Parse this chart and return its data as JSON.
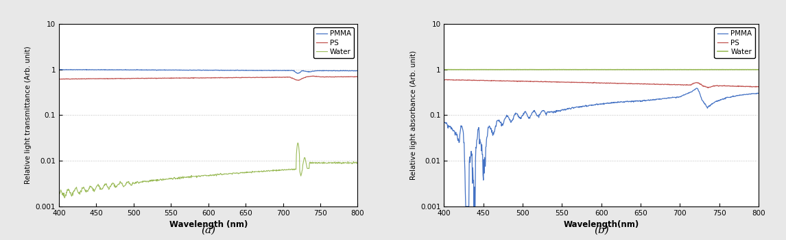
{
  "xlim": [
    400,
    800
  ],
  "ylim_log": [
    0.001,
    10
  ],
  "yticks": [
    0.001,
    0.01,
    0.1,
    1,
    10
  ],
  "xticks": [
    400,
    450,
    500,
    550,
    600,
    650,
    700,
    750,
    800
  ],
  "xlabel_a": "Wavelength (nm)",
  "xlabel_b": "Wavelength(nm)",
  "ylabel_a": "Relative light transmittance (Arb. unit)",
  "ylabel_b": "Relative light absorbance (Arb. unit)",
  "label_a": "(a)",
  "label_b": "(b)",
  "legend_labels": [
    "PMMA",
    "PS",
    "Water"
  ],
  "colors": {
    "PMMA": "#4472C4",
    "PS": "#C0504D",
    "Water": "#9BBB59"
  },
  "bg_color": "#ffffff",
  "outer_bg": "#f0f0f0",
  "grid_color": "#aaaaaa"
}
